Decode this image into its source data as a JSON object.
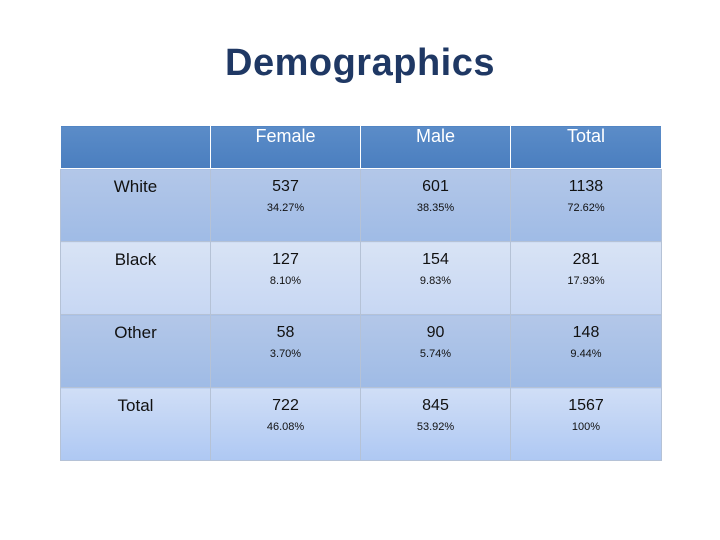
{
  "title": "Demographics",
  "table": {
    "headers": [
      "",
      "Female",
      "Male",
      "Total"
    ],
    "rows": [
      {
        "label": "White",
        "cells": [
          {
            "count": "537",
            "percent": "34.27%"
          },
          {
            "count": "601",
            "percent": "38.35%"
          },
          {
            "count": "1138",
            "percent": "72.62%"
          }
        ]
      },
      {
        "label": "Black",
        "cells": [
          {
            "count": "127",
            "percent": "8.10%"
          },
          {
            "count": "154",
            "percent": "9.83%"
          },
          {
            "count": "281",
            "percent": "17.93%"
          }
        ]
      },
      {
        "label": "Other",
        "cells": [
          {
            "count": "58",
            "percent": "3.70%"
          },
          {
            "count": "90",
            "percent": "5.74%"
          },
          {
            "count": "148",
            "percent": "9.44%"
          }
        ]
      },
      {
        "label": "Total",
        "cells": [
          {
            "count": "722",
            "percent": "46.08%"
          },
          {
            "count": "845",
            "percent": "53.92%"
          },
          {
            "count": "1567",
            "percent": "100%"
          }
        ]
      }
    ]
  }
}
